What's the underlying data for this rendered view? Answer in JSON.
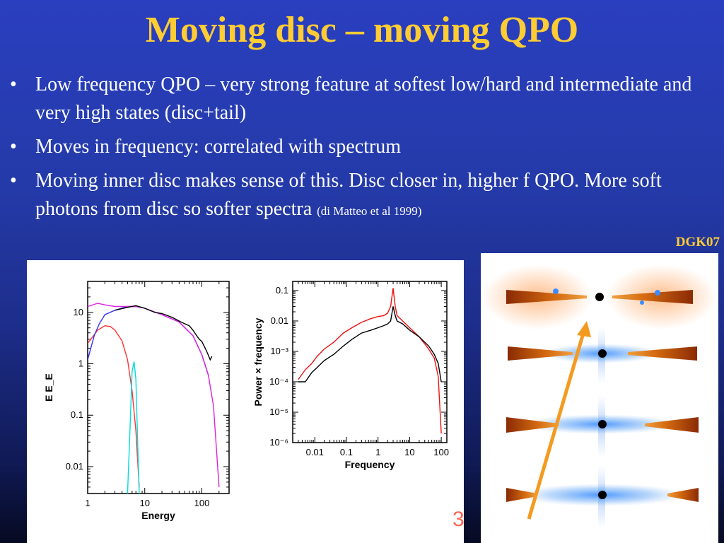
{
  "slide": {
    "title": "Moving disc – moving QPO",
    "bullets": [
      {
        "text": "Low frequency QPO – very strong feature at softest low/hard and intermediate and very high states (disc+tail)",
        "cite": ""
      },
      {
        "text": "Moves in frequency: correlated with spectrum",
        "cite": ""
      },
      {
        "text": "Moving inner disc makes sense of this. Disc closer in, higher f QPO. More soft photons from disc so softer spectra ",
        "cite": "(di Matteo et al 1999)"
      }
    ],
    "bullet_symbol": "•",
    "figure_credit": "DGK07",
    "page_number_fragment": "3"
  },
  "colors": {
    "title": "#ffcc33",
    "body_text": "#ffffff",
    "background_top": "#2a3fbf",
    "background_bottom": "#060a22"
  },
  "chart_data": [
    {
      "type": "line",
      "xlabel": "Energy",
      "ylabel": "E E_E",
      "x_scale": "log",
      "y_scale": "log",
      "xlim": [
        1,
        300
      ],
      "ylim": [
        0.003,
        40
      ],
      "x_ticks": [
        "1",
        "10",
        "100"
      ],
      "y_ticks": [
        "0.01",
        "0.1",
        "1",
        "10"
      ],
      "series": [
        {
          "color": "#ff3333",
          "x": [
            1,
            1.5,
            2,
            2.5,
            3,
            4,
            5,
            6,
            7,
            8
          ],
          "y": [
            2.5,
            4.5,
            5.5,
            5.3,
            4.5,
            2.8,
            1.2,
            0.3,
            0.05,
            0.004
          ]
        },
        {
          "color": "#00dddd",
          "x": [
            5,
            5.5,
            6,
            6.5,
            7,
            7.5,
            8
          ],
          "y": [
            0.003,
            0.05,
            0.7,
            1.1,
            0.5,
            0.03,
            0.003
          ]
        },
        {
          "color": "#3333ff",
          "x": [
            1,
            1.3,
            1.6,
            2,
            3,
            5,
            7,
            10,
            20,
            40,
            70,
            100,
            130
          ],
          "y": [
            1.2,
            3.5,
            6,
            9,
            11,
            13,
            13,
            12,
            9,
            6.5,
            3.5,
            1.5,
            0.6
          ]
        },
        {
          "color": "#dd22dd",
          "x": [
            1,
            1.5,
            2,
            3,
            5,
            7,
            10,
            20,
            40,
            70,
            100,
            130,
            160,
            200
          ],
          "y": [
            13,
            15,
            14,
            13,
            13,
            13,
            12,
            9,
            6.5,
            3.5,
            1.5,
            0.6,
            0.15,
            0.004
          ]
        },
        {
          "color": "#000000",
          "x": [
            3,
            5,
            7,
            10,
            15,
            20,
            30,
            40,
            50,
            60,
            70,
            80,
            90,
            100,
            120,
            140,
            150
          ],
          "y": [
            11,
            12.5,
            13.5,
            12,
            10,
            9.5,
            8,
            6.8,
            6,
            5.5,
            4.5,
            3.6,
            3,
            2.7,
            1.8,
            1.2,
            1.4
          ]
        }
      ]
    },
    {
      "type": "line",
      "xlabel": "Frequency",
      "ylabel": "Power × frequency",
      "x_scale": "log",
      "y_scale": "log",
      "xlim": [
        0.002,
        150
      ],
      "ylim": [
        1e-06,
        0.2
      ],
      "x_ticks": [
        "0.01",
        "0.1",
        "1",
        "10",
        "100"
      ],
      "y_ticks": [
        "0.1",
        "0.01",
        "10⁻³",
        "10⁻⁴",
        "10⁻⁵",
        "10⁻⁶"
      ],
      "series": [
        {
          "color": "#ee1111",
          "x": [
            0.003,
            0.005,
            0.008,
            0.012,
            0.02,
            0.04,
            0.08,
            0.15,
            0.3,
            0.6,
            1,
            1.5,
            2,
            2.5,
            3,
            3.5,
            4,
            6,
            10,
            20,
            40,
            60,
            80,
            100
          ],
          "y": [
            0.00012,
            0.00025,
            0.0004,
            0.0007,
            0.0012,
            0.002,
            0.004,
            0.006,
            0.009,
            0.012,
            0.014,
            0.015,
            0.018,
            0.03,
            0.12,
            0.03,
            0.015,
            0.01,
            0.006,
            0.003,
            0.0012,
            0.0006,
            0.00015,
            2e-06
          ]
        },
        {
          "color": "#000000",
          "x": [
            0.003,
            0.005,
            0.008,
            0.012,
            0.02,
            0.04,
            0.08,
            0.15,
            0.3,
            0.6,
            1,
            1.5,
            2,
            2.5,
            3,
            3.5,
            4,
            6,
            10,
            20,
            40,
            60,
            80,
            100
          ],
          "y": [
            0.0001,
            0.0001,
            0.0002,
            0.0003,
            0.0005,
            0.0008,
            0.0015,
            0.0025,
            0.004,
            0.005,
            0.006,
            0.007,
            0.008,
            0.01,
            0.03,
            0.015,
            0.01,
            0.008,
            0.005,
            0.003,
            0.0015,
            0.0008,
            0.0004,
            0.0001
          ]
        }
      ]
    }
  ]
}
